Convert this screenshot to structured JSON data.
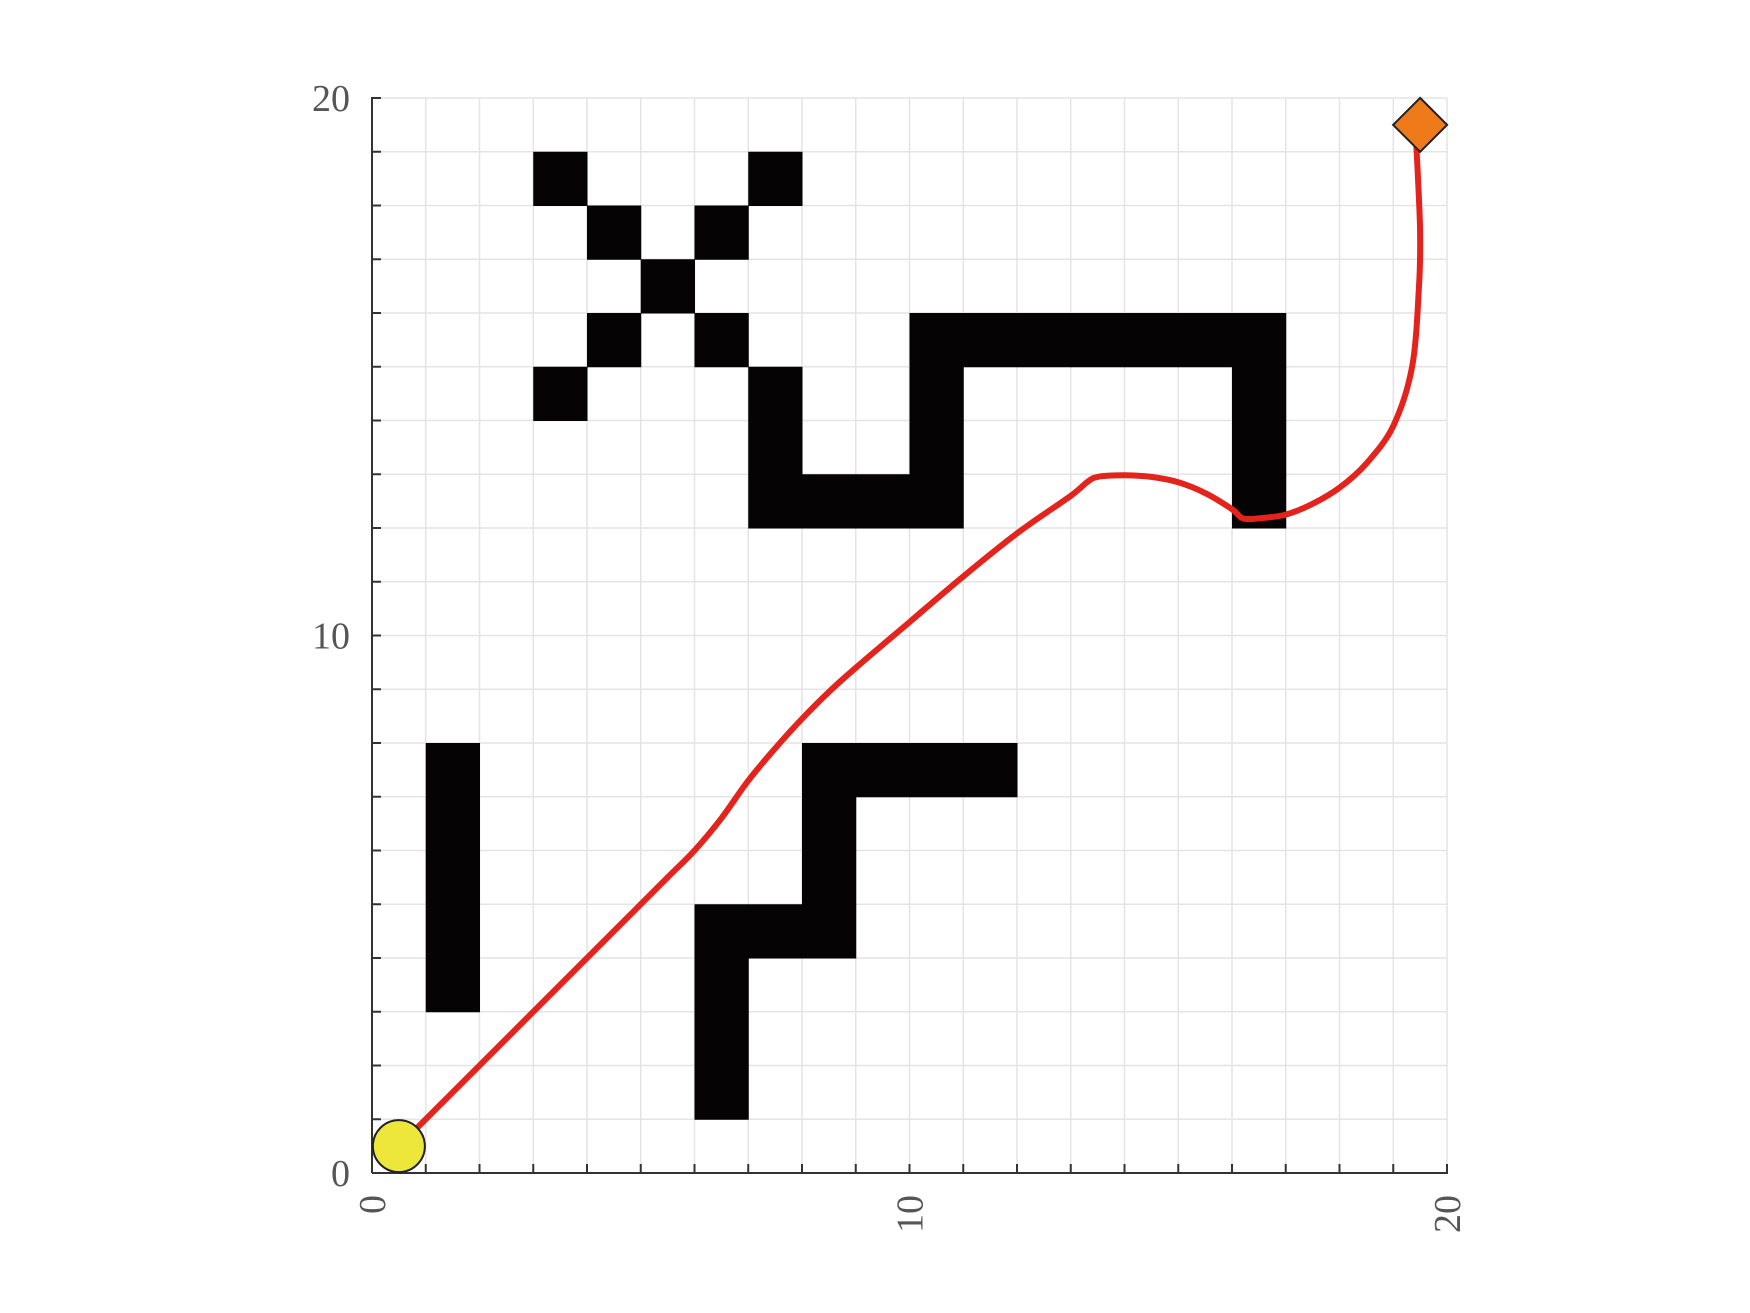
{
  "chart_data": {
    "type": "path-planning-grid",
    "title": "",
    "xlabel": "",
    "ylabel": "",
    "xlim": [
      0,
      20
    ],
    "ylim": [
      0,
      20
    ],
    "grid": true,
    "grid_step": 1,
    "x_ticks": [
      "0",
      "10",
      "20"
    ],
    "y_ticks": [
      "0",
      "10",
      "20"
    ],
    "colors": {
      "obstacle": "#050303",
      "path": "#e3231c",
      "start": "#ece73a",
      "goal": "#ef7a1a",
      "grid": "#e4e4e4",
      "axis": "#333333"
    },
    "obstacles": [
      [
        3,
        18
      ],
      [
        7,
        18
      ],
      [
        4,
        17
      ],
      [
        6,
        17
      ],
      [
        5,
        16
      ],
      [
        4,
        15
      ],
      [
        6,
        15
      ],
      [
        10,
        15
      ],
      [
        11,
        15
      ],
      [
        12,
        15
      ],
      [
        13,
        15
      ],
      [
        14,
        15
      ],
      [
        15,
        15
      ],
      [
        16,
        15
      ],
      [
        3,
        14
      ],
      [
        7,
        14
      ],
      [
        10,
        14
      ],
      [
        16,
        14
      ],
      [
        7,
        13
      ],
      [
        10,
        13
      ],
      [
        16,
        13
      ],
      [
        7,
        12
      ],
      [
        8,
        12
      ],
      [
        9,
        12
      ],
      [
        10,
        12
      ],
      [
        16,
        12
      ],
      [
        1,
        7
      ],
      [
        8,
        7
      ],
      [
        9,
        7
      ],
      [
        10,
        7
      ],
      [
        11,
        7
      ],
      [
        1,
        6
      ],
      [
        8,
        6
      ],
      [
        1,
        5
      ],
      [
        8,
        5
      ],
      [
        1,
        4
      ],
      [
        6,
        4
      ],
      [
        7,
        4
      ],
      [
        8,
        4
      ],
      [
        1,
        3
      ],
      [
        6,
        3
      ],
      [
        6,
        2
      ],
      [
        6,
        1
      ]
    ],
    "start": {
      "name": "start",
      "x": 0.5,
      "y": 0.5
    },
    "goal": {
      "name": "goal",
      "x": 19.5,
      "y": 19.5
    },
    "path": [
      [
        0.5,
        0.5
      ],
      [
        1.5,
        1.5
      ],
      [
        2.5,
        2.5
      ],
      [
        3.5,
        3.5
      ],
      [
        4.5,
        4.5
      ],
      [
        5.5,
        5.5
      ],
      [
        6.0,
        6.0
      ],
      [
        6.5,
        6.6
      ],
      [
        7.0,
        7.3
      ],
      [
        7.5,
        7.9
      ],
      [
        8.0,
        8.45
      ],
      [
        8.5,
        8.95
      ],
      [
        9.0,
        9.4
      ],
      [
        10.0,
        10.25
      ],
      [
        11.0,
        11.1
      ],
      [
        12.0,
        11.9
      ],
      [
        13.0,
        12.6
      ],
      [
        13.3,
        12.85
      ],
      [
        13.5,
        12.95
      ],
      [
        14.0,
        12.98
      ],
      [
        14.5,
        12.95
      ],
      [
        15.0,
        12.85
      ],
      [
        15.5,
        12.65
      ],
      [
        16.0,
        12.35
      ],
      [
        16.2,
        12.18
      ],
      [
        16.5,
        12.18
      ],
      [
        17.0,
        12.25
      ],
      [
        17.5,
        12.45
      ],
      [
        18.0,
        12.75
      ],
      [
        18.5,
        13.2
      ],
      [
        19.0,
        13.9
      ],
      [
        19.35,
        15.0
      ],
      [
        19.48,
        16.5
      ],
      [
        19.5,
        17.5
      ],
      [
        19.46,
        18.5
      ],
      [
        19.42,
        19.3
      ]
    ]
  }
}
